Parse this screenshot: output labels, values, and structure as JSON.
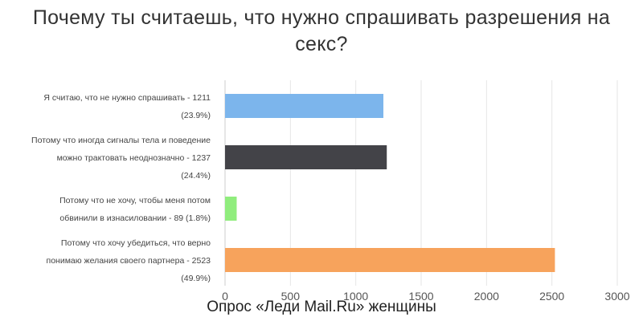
{
  "chart_data": {
    "type": "bar",
    "orientation": "horizontal",
    "title": "Почему ты считаешь, что нужно спрашивать разрешения на секс?",
    "categories": [
      [
        "Я считаю, что не нужно спрашивать - 1211",
        "(23.9%)"
      ],
      [
        "Потому что иногда сигналы тела и поведение",
        "можно трактовать неоднозначно - 1237",
        "(24.4%)"
      ],
      [
        "Потому что не хочу, чтобы меня потом",
        "обвинили в изнасиловании - 89 (1.8%)"
      ],
      [
        "Потому что хочу убедиться, что верно",
        "понимаю желания своего партнера - 2523",
        "(49.9%)"
      ]
    ],
    "values": [
      1211,
      1237,
      89,
      2523
    ],
    "colors": [
      "#7cb5ec",
      "#434348",
      "#90ed7d",
      "#f7a35c"
    ],
    "xlim": [
      0,
      3000
    ],
    "ticks": [
      0,
      500,
      1000,
      1500,
      2000,
      2500,
      3000
    ],
    "xlabel": "",
    "ylabel": "",
    "grid": true,
    "legend": "none"
  },
  "source_note": "Опрос «Леди Mail.Ru» женщины"
}
